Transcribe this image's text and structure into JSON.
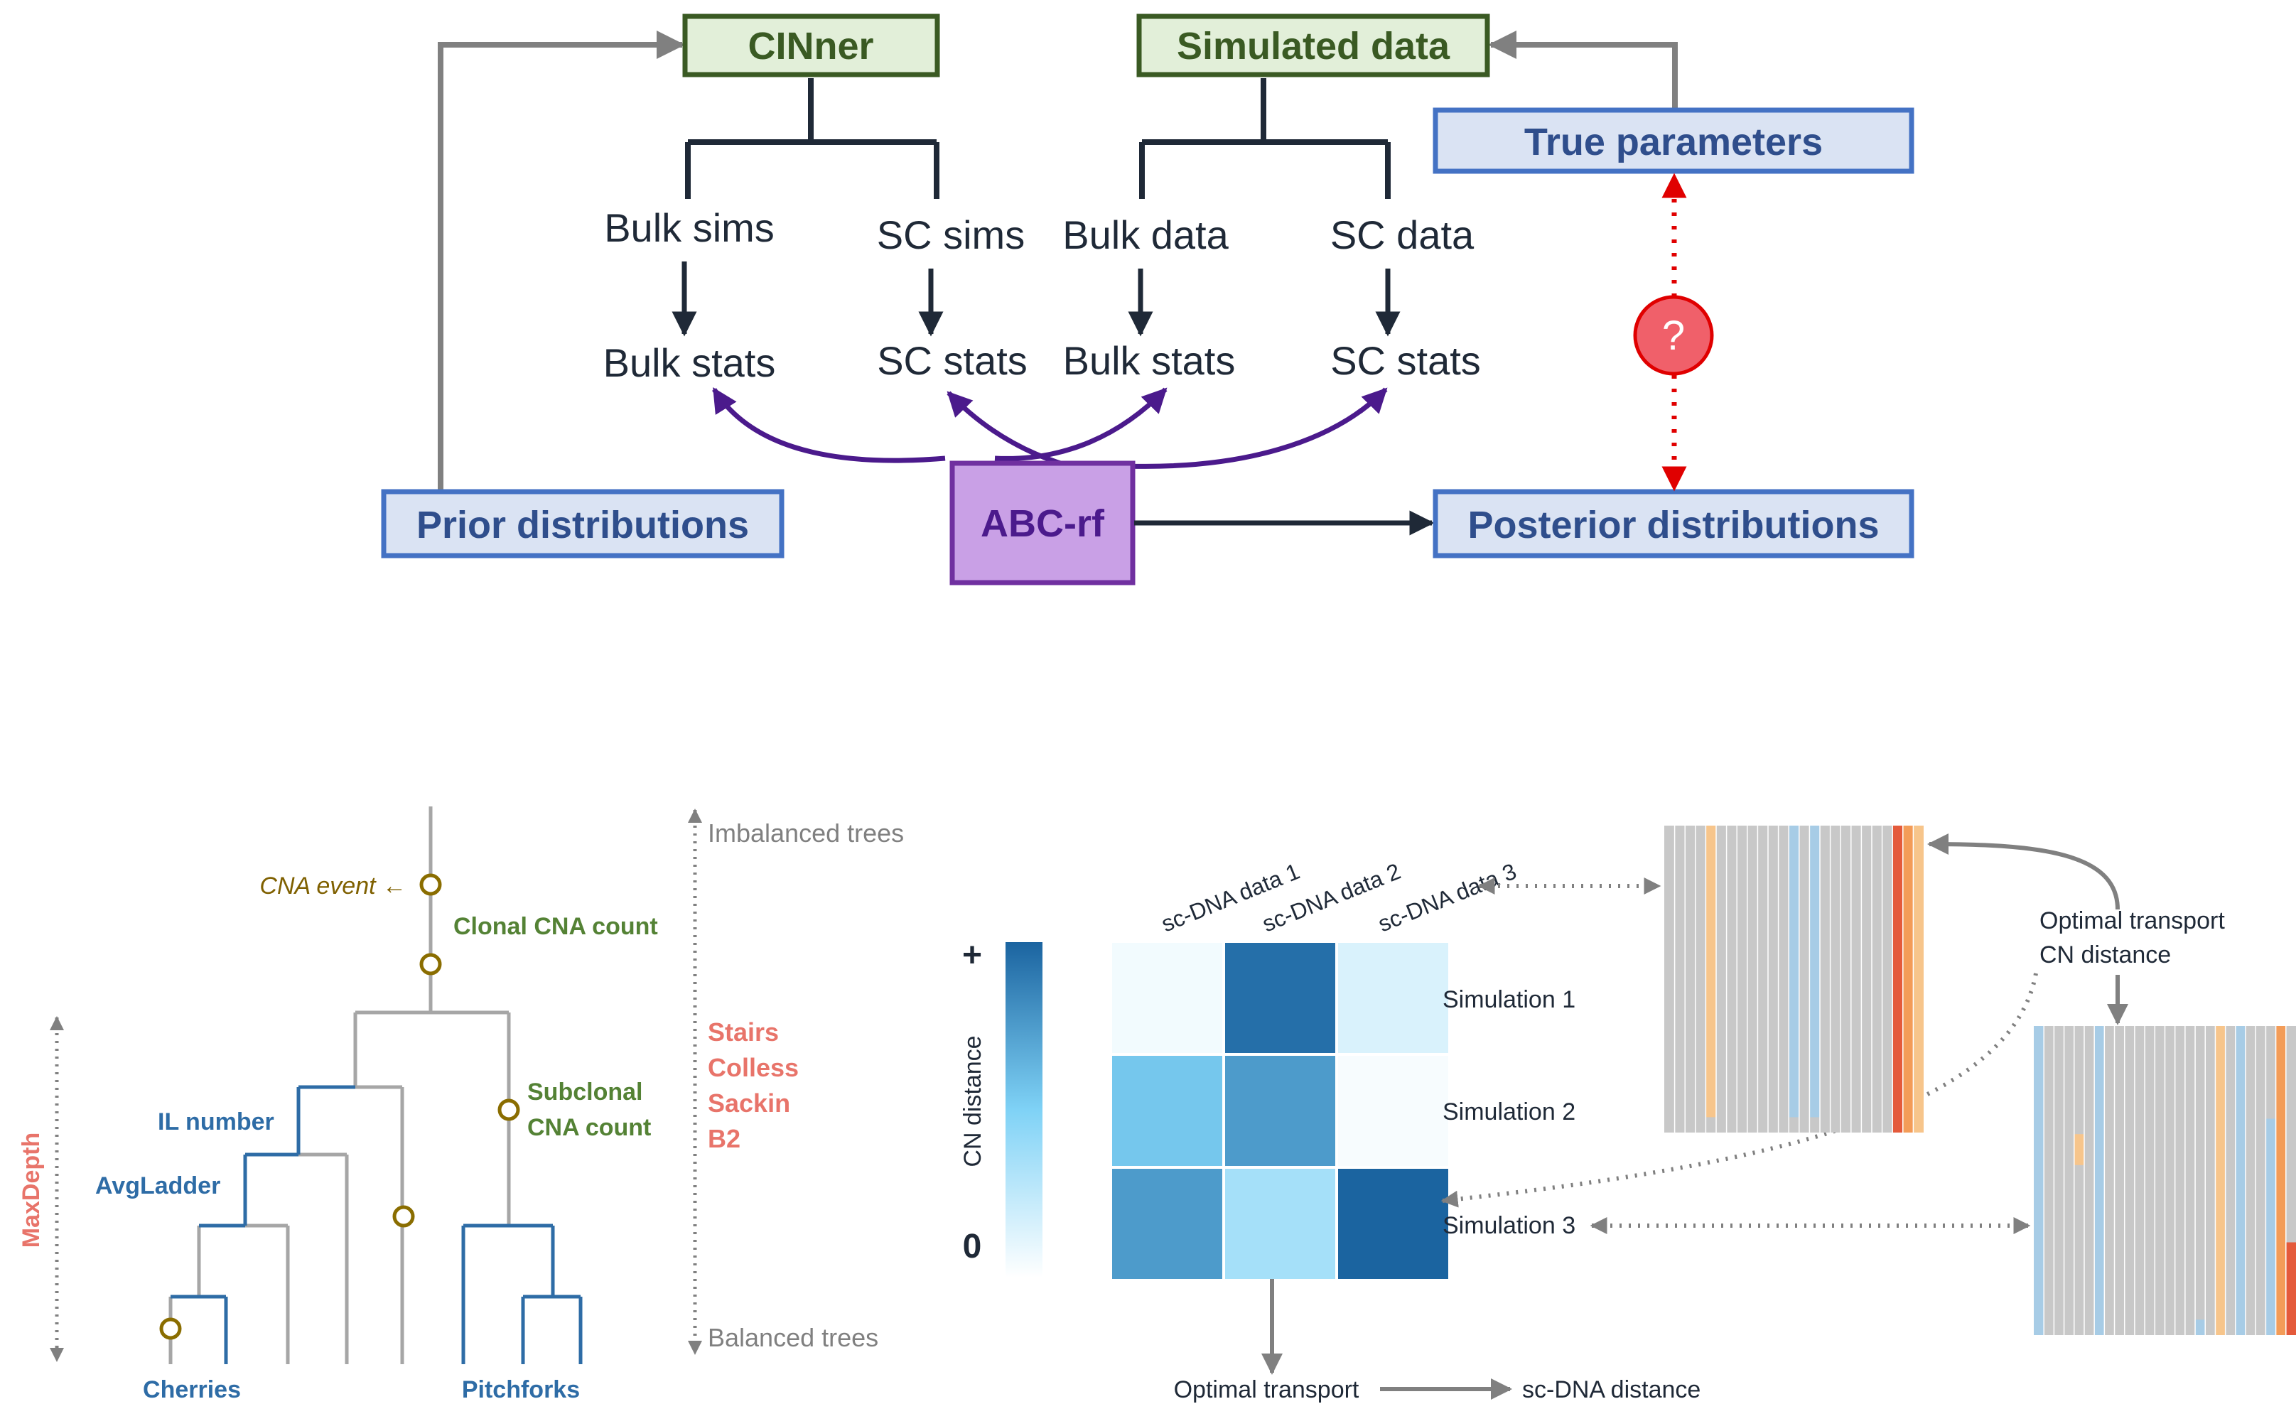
{
  "top": {
    "cinner": "CINner",
    "simulated_data": "Simulated data",
    "true_parameters": "True parameters",
    "bulk_sims": "Bulk sims",
    "sc_sims": "SC sims",
    "bulk_data": "Bulk data",
    "sc_data": "SC data",
    "bulk_stats_sim": "Bulk stats",
    "sc_stats_sim": "SC stats",
    "bulk_stats_data": "Bulk stats",
    "sc_stats_data": "SC stats",
    "question": "?",
    "prior": "Prior distributions",
    "abc": "ABC-rf",
    "posterior": "Posterior distributions"
  },
  "tree": {
    "cna_event": "CNA event ←",
    "clonal": "Clonal CNA count",
    "subclonal_1": "Subclonal",
    "subclonal_2": "CNA count",
    "il_number": "IL number",
    "avgladder": "AvgLadder",
    "cherries": "Cherries",
    "pitchforks": "Pitchforks",
    "maxdepth": "MaxDepth",
    "imbalanced": "Imbalanced trees",
    "balanced": "Balanced trees",
    "balance_stats": [
      "Stairs",
      "Colless",
      "Sackin",
      "B2"
    ]
  },
  "matrix": {
    "plus": "+",
    "zero": "0",
    "cn_distance": "CN distance",
    "columns": [
      "sc-DNA data 1",
      "sc-DNA data 2",
      "sc-DNA data 3"
    ],
    "rows": [
      "Simulation 1",
      "Simulation 2",
      "Simulation 3"
    ],
    "cells": [
      [
        0.05,
        0.95,
        0.15
      ],
      [
        0.55,
        0.75,
        0.03
      ],
      [
        0.75,
        0.35,
        1.0
      ]
    ],
    "optimal_transport": "Optimal transport",
    "sc_dna_distance": "sc-DNA distance",
    "ot_label_1": "Optimal transport",
    "ot_label_2": "CN distance"
  },
  "colors": {
    "green_border": "#3a5a23",
    "green_fill": "#e2efd9",
    "blue_border": "#4472c4",
    "blue_fill": "#dae3f3",
    "blue_text": "#2f4e8c",
    "purple_border": "#7030a0",
    "purple_fill": "#c9a0e6",
    "purple_arrow": "#4b1a8c",
    "dark": "#1f2937",
    "salmon": "#e8746a",
    "tree_blue": "#2e6ca6",
    "tree_green": "#548235",
    "cna_olive": "#7f6000"
  }
}
